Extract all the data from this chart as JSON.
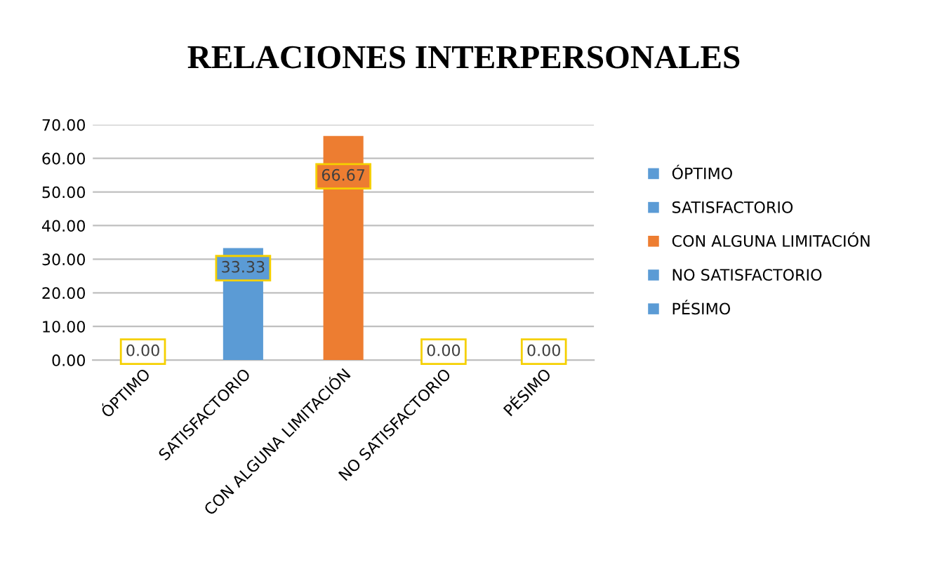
{
  "chart_data": {
    "type": "bar",
    "title": "RELACIONES INTERPERSONALES",
    "categories": [
      "ÓPTIMO",
      "SATISFACTORIO",
      "CON ALGUNA LIMITACIÓN",
      "NO SATISFACTORIO",
      "PÉSIMO"
    ],
    "series": [
      {
        "name": "ÓPTIMO",
        "color": "#5b9bd5",
        "values": [
          0,
          null,
          null,
          null,
          null
        ],
        "value_labels": [
          "0.00",
          null,
          null,
          null,
          null
        ]
      },
      {
        "name": "SATISFACTORIO",
        "color": "#5b9bd5",
        "values": [
          null,
          33.33,
          null,
          null,
          null
        ],
        "value_labels": [
          null,
          "33.33",
          null,
          null,
          null
        ]
      },
      {
        "name": "CON ALGUNA LIMITACIÓN",
        "color": "#ed7d31",
        "values": [
          null,
          null,
          66.67,
          null,
          null
        ],
        "value_labels": [
          null,
          null,
          "66.67",
          null,
          null
        ]
      },
      {
        "name": "NO SATISFACTORIO",
        "color": "#5b9bd5",
        "values": [
          null,
          null,
          null,
          0,
          null
        ],
        "value_labels": [
          null,
          null,
          null,
          "0.00",
          null
        ]
      },
      {
        "name": "PÉSIMO",
        "color": "#5b9bd5",
        "values": [
          null,
          null,
          null,
          null,
          0
        ],
        "value_labels": [
          null,
          null,
          null,
          null,
          "0.00"
        ]
      }
    ],
    "ylim": [
      0,
      70
    ],
    "yticks": [
      {
        "value": 0,
        "label": "0.00"
      },
      {
        "value": 10,
        "label": "10.00"
      },
      {
        "value": 20,
        "label": "20.00"
      },
      {
        "value": 30,
        "label": "30.00"
      },
      {
        "value": 40,
        "label": "40.00"
      },
      {
        "value": 50,
        "label": "50.00"
      },
      {
        "value": 60,
        "label": "60.00"
      },
      {
        "value": 70,
        "label": "70.00"
      }
    ],
    "grid": "y",
    "legend": "right"
  }
}
